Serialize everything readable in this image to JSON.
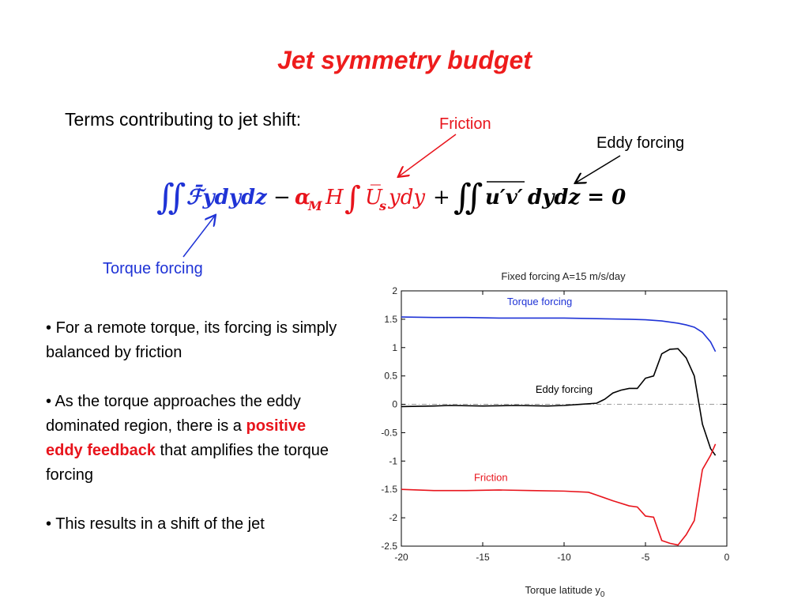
{
  "slide": {
    "title": "Jet symmetry budget",
    "intro": "Terms contributing to jet shift:"
  },
  "annotations": {
    "friction": "Friction",
    "eddy": "Eddy forcing",
    "torque": "Torque forcing"
  },
  "equation": {
    "term1": "ℱ̄ydydz",
    "minus": "−",
    "alpha": "α",
    "alpha_sub": "M",
    "H": "H",
    "U": "U̅",
    "U_sub": "s",
    "term2_rest": "ydy",
    "plus": "+",
    "eddy_term": "u′v′",
    "term3_rest": "dydz = 0"
  },
  "bullets": {
    "b1": "For a remote torque, its forcing is simply balanced by friction",
    "b2_pre": "As the torque approaches the eddy dominated region, there is a",
    "b2_em": "positive eddy feedback",
    "b2_post": "that amplifies the torque forcing",
    "b3": "This results in a shift of the jet"
  },
  "colors": {
    "title": "#ee1c1c",
    "friction": "#e8141c",
    "torque": "#1f33d6",
    "eddy": "#000000"
  },
  "chart_data": {
    "type": "line",
    "title": "Fixed forcing A=15 m/s/day",
    "xlabel": "Torque latitude y",
    "xlabel_sub": "0",
    "xlim": [
      -20,
      0
    ],
    "ylim": [
      -2.5,
      2
    ],
    "xticks": [
      -20,
      -15,
      -10,
      -5,
      0
    ],
    "yticks": [
      2,
      1.5,
      1,
      0.5,
      0,
      -0.5,
      -1,
      -1.5,
      -2,
      -2.5
    ],
    "series": [
      {
        "name": "Torque forcing",
        "color": "#1f33d6",
        "x": [
          -20,
          -18,
          -16,
          -14,
          -12,
          -10,
          -8,
          -6,
          -5,
          -4,
          -3,
          -2.5,
          -2,
          -1.5,
          -1,
          -0.7
        ],
        "y": [
          1.54,
          1.53,
          1.53,
          1.52,
          1.52,
          1.52,
          1.51,
          1.5,
          1.49,
          1.47,
          1.43,
          1.4,
          1.36,
          1.27,
          1.1,
          0.93
        ]
      },
      {
        "name": "Eddy forcing",
        "color": "#000000",
        "x": [
          -20,
          -18,
          -17,
          -15,
          -13,
          -11,
          -10,
          -9,
          -8,
          -7.5,
          -7,
          -6.5,
          -6,
          -5.5,
          -5,
          -4.5,
          -4,
          -3.5,
          -3,
          -2.5,
          -2,
          -1.5,
          -1,
          -0.7
        ],
        "y": [
          -0.04,
          -0.03,
          -0.02,
          -0.03,
          -0.02,
          -0.03,
          -0.02,
          0,
          0.02,
          0.09,
          0.2,
          0.25,
          0.28,
          0.28,
          0.46,
          0.5,
          0.89,
          0.97,
          0.98,
          0.82,
          0.5,
          -0.35,
          -0.78,
          -0.9
        ]
      },
      {
        "name": "Friction",
        "color": "#e8141c",
        "x": [
          -20,
          -18,
          -16,
          -14,
          -12,
          -10,
          -8.5,
          -8,
          -7,
          -6,
          -5.5,
          -5,
          -4.5,
          -4,
          -3.5,
          -3,
          -2.5,
          -2,
          -1.5,
          -1,
          -0.7
        ],
        "y": [
          -1.5,
          -1.52,
          -1.52,
          -1.51,
          -1.52,
          -1.53,
          -1.55,
          -1.6,
          -1.7,
          -1.79,
          -1.81,
          -1.97,
          -1.99,
          -2.4,
          -2.45,
          -2.48,
          -2.3,
          -2.05,
          -1.15,
          -0.9,
          -0.7
        ]
      }
    ],
    "reference_line": {
      "y": 0,
      "style": "dash-dot"
    },
    "grid": false
  }
}
